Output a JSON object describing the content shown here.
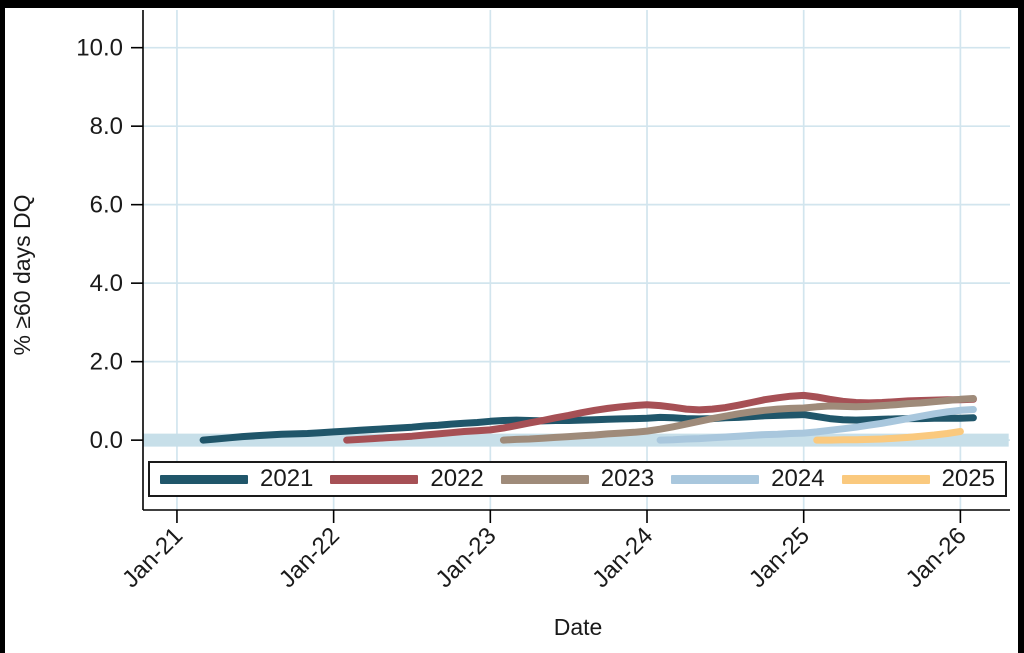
{
  "chart_data": {
    "type": "line",
    "title": "",
    "xlabel": "Date",
    "ylabel": "% ≥60 days DQ",
    "x_ticks": [
      "Jan-21",
      "Jan-22",
      "Jan-23",
      "Jan-24",
      "Jan-25",
      "Jan-26"
    ],
    "x_tick_months": [
      0,
      12,
      24,
      36,
      48,
      60
    ],
    "y_ticks": [
      "0.0",
      "2.0",
      "4.0",
      "6.0",
      "8.0",
      "10.0"
    ],
    "y_tick_values": [
      0,
      2,
      4,
      6,
      8,
      10
    ],
    "xlim_months": [
      -2.6,
      63.8
    ],
    "ylim": [
      -1.78,
      10.96
    ],
    "grid": true,
    "legend_position": "bottom-inside",
    "axis_color": "#000000",
    "grid_color": "#d2e5ee",
    "zero_band": {
      "value": 0,
      "x_start_month": -2.6,
      "x_end_month": 63.7,
      "color": "#c7dfe9",
      "thickness": 13
    },
    "series": [
      {
        "name": "2021",
        "color": "#20566a",
        "start_month": 2,
        "note": "monthly % 60+ days delinquent, 2021 vintage, Mar-21 through Feb-26",
        "values": [
          0.0,
          0.03,
          0.06,
          0.09,
          0.11,
          0.13,
          0.15,
          0.16,
          0.17,
          0.19,
          0.21,
          0.23,
          0.25,
          0.27,
          0.29,
          0.31,
          0.33,
          0.36,
          0.38,
          0.41,
          0.43,
          0.45,
          0.48,
          0.5,
          0.51,
          0.5,
          0.49,
          0.5,
          0.5,
          0.51,
          0.52,
          0.53,
          0.54,
          0.55,
          0.56,
          0.58,
          0.57,
          0.55,
          0.54,
          0.55,
          0.57,
          0.58,
          0.6,
          0.62,
          0.63,
          0.64,
          0.65,
          0.6,
          0.55,
          0.52,
          0.51,
          0.52,
          0.53,
          0.54,
          0.55,
          0.55,
          0.56,
          0.56,
          0.56,
          0.57
        ]
      },
      {
        "name": "2022",
        "color": "#a65055",
        "start_month": 13,
        "note": "monthly % 60+ days delinquent, 2022 vintage, Feb-22 through Feb-26",
        "values": [
          0.0,
          0.02,
          0.04,
          0.06,
          0.08,
          0.1,
          0.13,
          0.16,
          0.19,
          0.22,
          0.24,
          0.26,
          0.31,
          0.37,
          0.44,
          0.5,
          0.57,
          0.63,
          0.7,
          0.76,
          0.81,
          0.85,
          0.88,
          0.9,
          0.88,
          0.84,
          0.79,
          0.77,
          0.79,
          0.83,
          0.89,
          0.96,
          1.03,
          1.08,
          1.12,
          1.14,
          1.1,
          1.04,
          0.99,
          0.96,
          0.95,
          0.96,
          0.98,
          1.0,
          1.01,
          1.02,
          1.03,
          1.03,
          1.04
        ]
      },
      {
        "name": "2023",
        "color": "#9f8b7a",
        "start_month": 25,
        "note": "monthly % 60+ days delinquent, 2023 vintage, Feb-23 through Feb-26",
        "values": [
          0.0,
          0.02,
          0.03,
          0.05,
          0.07,
          0.09,
          0.11,
          0.13,
          0.16,
          0.18,
          0.2,
          0.23,
          0.28,
          0.34,
          0.41,
          0.48,
          0.55,
          0.61,
          0.67,
          0.72,
          0.76,
          0.79,
          0.81,
          0.82,
          0.85,
          0.87,
          0.86,
          0.85,
          0.86,
          0.88,
          0.9,
          0.93,
          0.95,
          0.98,
          1.01,
          1.04,
          1.06
        ]
      },
      {
        "name": "2024",
        "color": "#a9c7dd",
        "start_month": 37,
        "note": "monthly % 60+ days delinquent, 2024 vintage, Feb-24 through Feb-26",
        "values": [
          0.0,
          0.01,
          0.03,
          0.04,
          0.06,
          0.08,
          0.1,
          0.12,
          0.14,
          0.15,
          0.17,
          0.18,
          0.21,
          0.25,
          0.29,
          0.33,
          0.38,
          0.43,
          0.49,
          0.55,
          0.61,
          0.67,
          0.72,
          0.76,
          0.78
        ]
      },
      {
        "name": "2025",
        "color": "#fac97e",
        "start_month": 49,
        "note": "monthly % 60+ days delinquent, 2025 vintage, Feb-25 through Jan-26",
        "values": [
          0.0,
          0.0,
          0.01,
          0.01,
          0.02,
          0.03,
          0.05,
          0.07,
          0.1,
          0.13,
          0.17,
          0.22
        ]
      }
    ]
  }
}
